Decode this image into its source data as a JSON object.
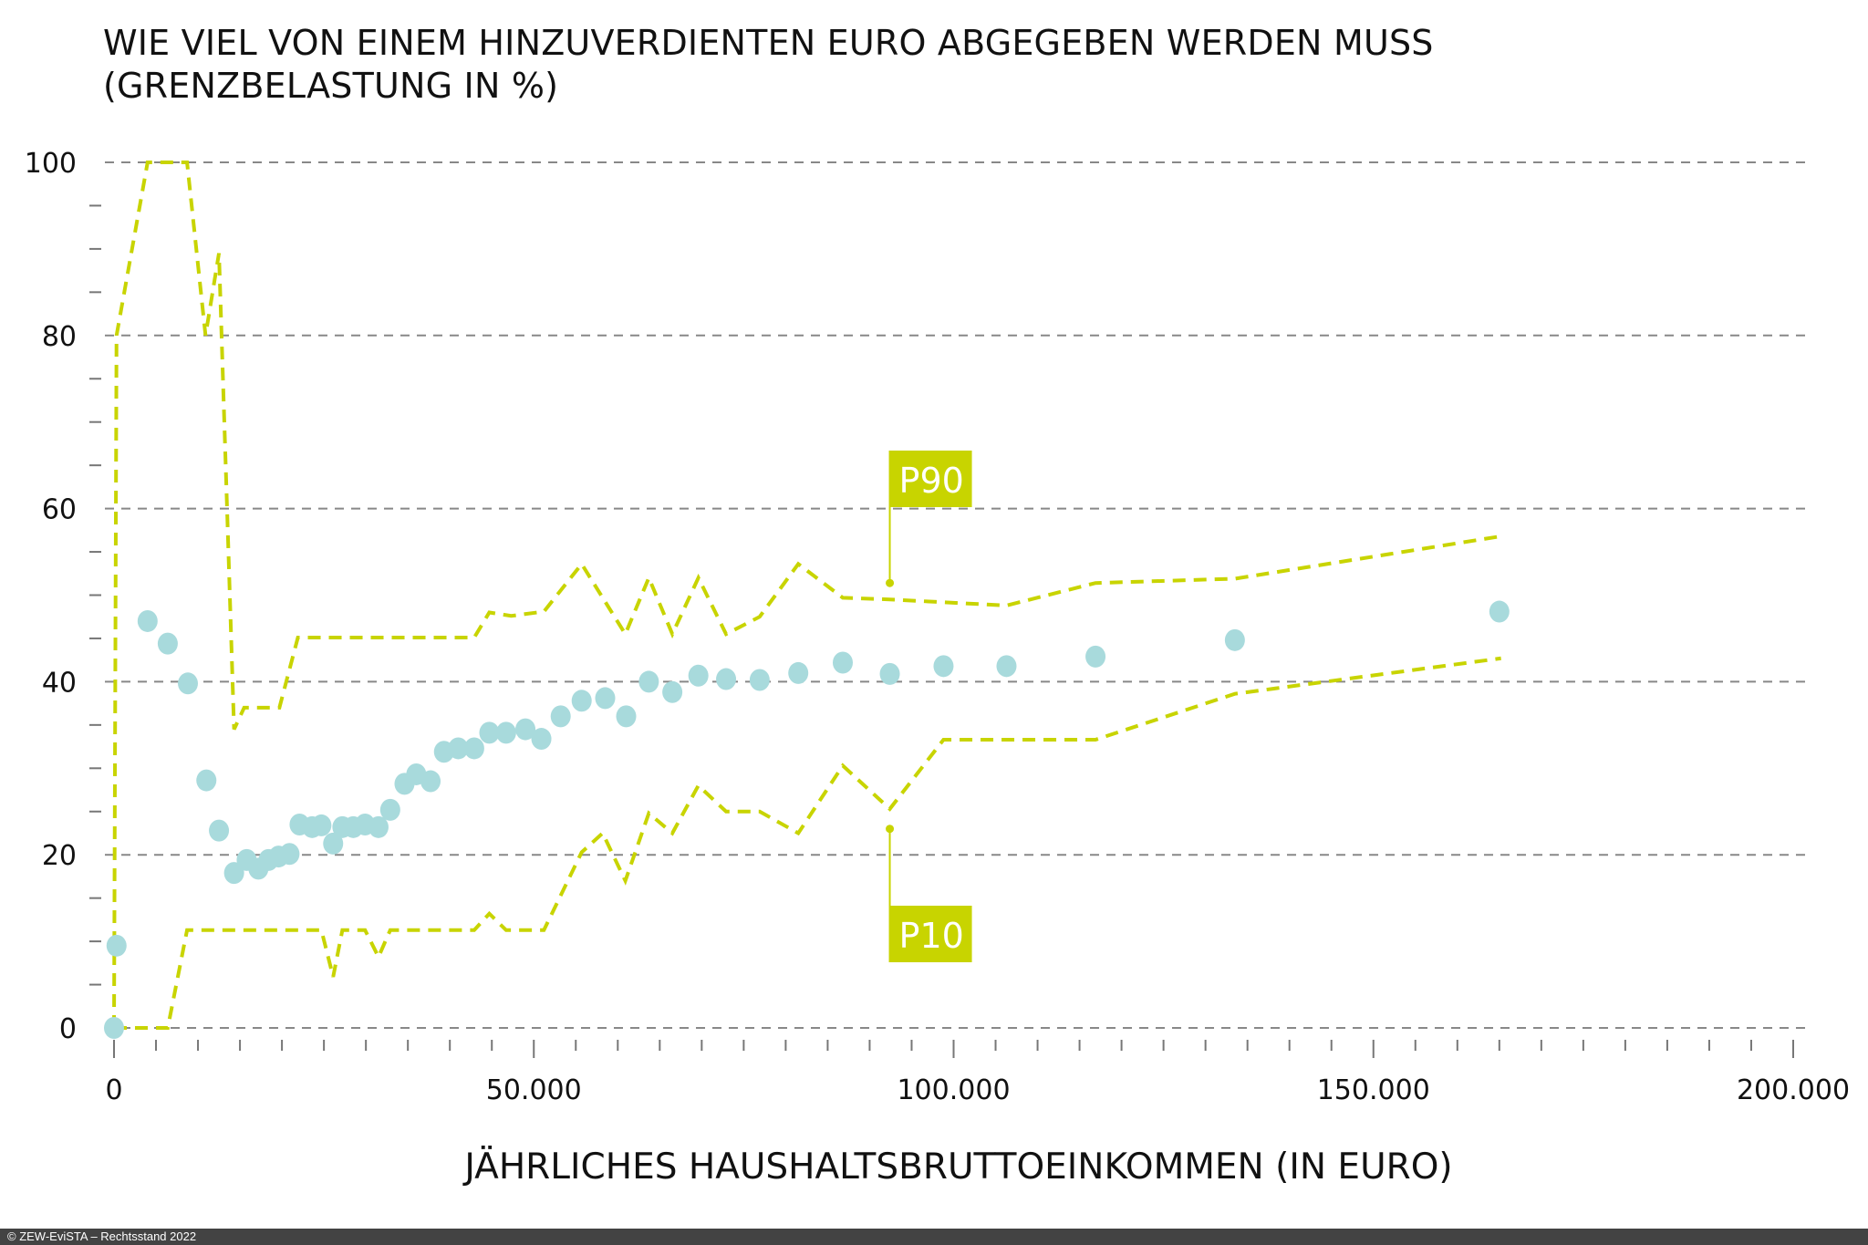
{
  "chart_data": {
    "type": "scatter",
    "title": "WIE VIEL VON EINEM HINZUVERDIENTEN EURO ABGEGEBEN WERDEN MUSS",
    "subtitle": "(GRENZBELASTUNG IN %)",
    "xlabel": "JÄHRLICHES HAUSHALTSBRUTTOEINKOMMEN (IN EURO)",
    "ylabel": "",
    "xlim": [
      0,
      200000
    ],
    "ylim": [
      0,
      100
    ],
    "x_ticks": [
      0,
      50000,
      100000,
      150000,
      200000
    ],
    "x_tick_labels": [
      "0",
      "50.000",
      "100.000",
      "150.000",
      "200.000"
    ],
    "y_ticks": [
      0,
      20,
      40,
      60,
      80,
      100
    ],
    "y_tick_labels": [
      "0",
      "20",
      "40",
      "60",
      "80",
      "100"
    ],
    "grid": true,
    "colors": {
      "points": "#a8dadc",
      "percentile_lines": "#c8d400",
      "grid": "#888888"
    },
    "points": [
      [
        0,
        0
      ],
      [
        300,
        9.5
      ],
      [
        4000,
        47
      ],
      [
        6400,
        44.4
      ],
      [
        8800,
        39.8
      ],
      [
        11000,
        28.6
      ],
      [
        12500,
        22.8
      ],
      [
        14300,
        17.9
      ],
      [
        15800,
        19.4
      ],
      [
        17200,
        18.4
      ],
      [
        18400,
        19.4
      ],
      [
        19600,
        19.8
      ],
      [
        20900,
        20.1
      ],
      [
        22100,
        23.5
      ],
      [
        23600,
        23.2
      ],
      [
        24700,
        23.4
      ],
      [
        26100,
        21.3
      ],
      [
        27200,
        23.2
      ],
      [
        28500,
        23.2
      ],
      [
        29900,
        23.5
      ],
      [
        31500,
        23.2
      ],
      [
        32900,
        25.2
      ],
      [
        34600,
        28.2
      ],
      [
        36000,
        29.3
      ],
      [
        37700,
        28.5
      ],
      [
        39300,
        31.9
      ],
      [
        41000,
        32.3
      ],
      [
        42900,
        32.3
      ],
      [
        44700,
        34.1
      ],
      [
        46700,
        34.1
      ],
      [
        49000,
        34.5
      ],
      [
        50900,
        33.4
      ],
      [
        53200,
        36.0
      ],
      [
        55700,
        37.8
      ],
      [
        58500,
        38.1
      ],
      [
        61000,
        36.0
      ],
      [
        63700,
        40.0
      ],
      [
        66500,
        38.8
      ],
      [
        69600,
        40.7
      ],
      [
        72900,
        40.3
      ],
      [
        76900,
        40.2
      ],
      [
        81500,
        41.0
      ],
      [
        86800,
        42.2
      ],
      [
        92400,
        40.9
      ],
      [
        98800,
        41.8
      ],
      [
        106300,
        41.8
      ],
      [
        116900,
        42.9
      ],
      [
        133500,
        44.8
      ],
      [
        165000,
        48.1
      ]
    ],
    "series": [
      {
        "name": "P90",
        "style": "dashed",
        "values": [
          [
            0,
            0
          ],
          [
            300,
            80
          ],
          [
            4000,
            100
          ],
          [
            8700,
            100
          ],
          [
            10900,
            80
          ],
          [
            12500,
            89.5
          ],
          [
            14300,
            34.5
          ],
          [
            15500,
            37
          ],
          [
            19700,
            37
          ],
          [
            21900,
            45.1
          ],
          [
            42900,
            45.1
          ],
          [
            44700,
            48
          ],
          [
            47300,
            47.6
          ],
          [
            51200,
            48.1
          ],
          [
            55700,
            53.6
          ],
          [
            60900,
            45.5
          ],
          [
            63700,
            52
          ],
          [
            66500,
            45.5
          ],
          [
            69600,
            52
          ],
          [
            72900,
            45.5
          ],
          [
            76900,
            47.5
          ],
          [
            81500,
            53.6
          ],
          [
            86800,
            49.7
          ],
          [
            92400,
            49.5
          ],
          [
            106300,
            48.8
          ],
          [
            116900,
            51.4
          ],
          [
            133500,
            51.9
          ],
          [
            165200,
            56.8
          ]
        ]
      },
      {
        "name": "P10",
        "style": "dashed",
        "values": [
          [
            0,
            0
          ],
          [
            2400,
            0
          ],
          [
            6400,
            0
          ],
          [
            8700,
            11.3
          ],
          [
            24700,
            11.3
          ],
          [
            26100,
            5.9
          ],
          [
            27200,
            11.3
          ],
          [
            29900,
            11.3
          ],
          [
            31500,
            8.2
          ],
          [
            32900,
            11.3
          ],
          [
            42900,
            11.3
          ],
          [
            44700,
            13.2
          ],
          [
            46700,
            11.3
          ],
          [
            51200,
            11.3
          ],
          [
            55700,
            20.3
          ],
          [
            58200,
            22.5
          ],
          [
            60900,
            17
          ],
          [
            63700,
            24.8
          ],
          [
            66500,
            22.5
          ],
          [
            69600,
            28
          ],
          [
            72900,
            25
          ],
          [
            76900,
            25
          ],
          [
            81500,
            22.5
          ],
          [
            86800,
            30.3
          ],
          [
            92400,
            25.3
          ],
          [
            98800,
            33.3
          ],
          [
            116900,
            33.3
          ],
          [
            133500,
            38.6
          ],
          [
            165200,
            42.7
          ]
        ]
      }
    ],
    "annotations": [
      {
        "label": "P90",
        "x": 92400,
        "y": 51.4,
        "position": "above"
      },
      {
        "label": "P10",
        "x": 92400,
        "y": 23,
        "position": "below"
      }
    ]
  },
  "footer": {
    "credit": "© ZEW-EviSTA – Rechtsstand 2022"
  }
}
